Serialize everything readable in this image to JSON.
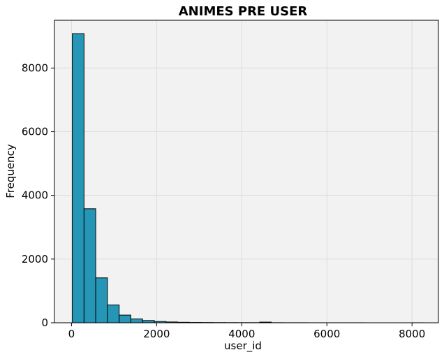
{
  "chart_data": {
    "type": "bar",
    "title": "ANIMES PRE USER",
    "xlabel": "user_id",
    "ylabel": "Frequency",
    "xlim": [
      -400,
      8620
    ],
    "ylim": [
      0,
      9500
    ],
    "x_ticks": [
      0,
      2000,
      4000,
      6000,
      8000
    ],
    "y_ticks": [
      0,
      2000,
      4000,
      6000,
      8000
    ],
    "bin_start": 20,
    "bin_width": 275,
    "values": [
      9080,
      3580,
      1410,
      560,
      240,
      120,
      70,
      40,
      25,
      15,
      10,
      8,
      6,
      5,
      4,
      4,
      20,
      3,
      2,
      2,
      1,
      1,
      1,
      1,
      1,
      0,
      0,
      0,
      0,
      1
    ],
    "grid": true,
    "colors": {
      "bar_fill": "#2596b5",
      "bar_edge": "#000000",
      "plot_bg": "#f2f2f2",
      "grid": "#dcdcdc"
    }
  }
}
